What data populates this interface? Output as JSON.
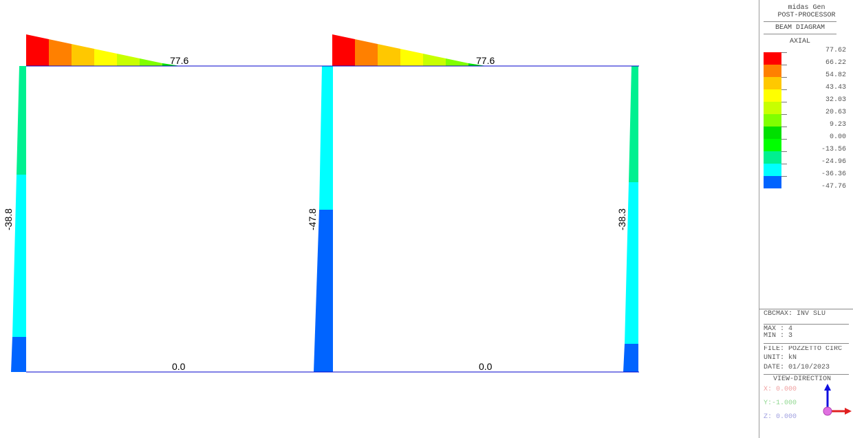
{
  "diagram": {
    "labels": {
      "beam1_top": "77.6",
      "beam2_top": "77.6",
      "beam1_bottom": "0.0",
      "beam2_bottom": "0.0",
      "col_left": "-38.8",
      "col_mid": "-47.8",
      "col_right": "-38.3"
    },
    "colors": {
      "red": "#ff0000",
      "orange": "#ff8000",
      "amber": "#ffc800",
      "yellow": "#ffff00",
      "yellowgreen": "#c8ff00",
      "lightgreen": "#80ff00",
      "green": "#00e000",
      "seagreen": "#00f090",
      "cyan": "#00ffff",
      "blue": "#0064ff",
      "member_line": "#0000cc"
    }
  },
  "panel": {
    "program": "midas Gen",
    "module": "POST-PROCESSOR",
    "diagram_type": "BEAM DIAGRAM",
    "component": "AXIAL",
    "legend": [
      {
        "value": "77.62",
        "color": "#ff0000"
      },
      {
        "value": "66.22",
        "color": "#ff8000"
      },
      {
        "value": "54.82",
        "color": "#ffc800"
      },
      {
        "value": "43.43",
        "color": "#ffff00"
      },
      {
        "value": "32.03",
        "color": "#c8ff00"
      },
      {
        "value": "20.63",
        "color": "#80ff00"
      },
      {
        "value": "9.23",
        "color": "#00e000"
      },
      {
        "value": "0.00",
        "color": "#00ff00"
      },
      {
        "value": "-13.56",
        "color": "#00f090"
      },
      {
        "value": "-24.96",
        "color": "#00ffff"
      },
      {
        "value": "-36.36",
        "color": "#0064ff"
      },
      {
        "value": "-47.76",
        "color": null
      }
    ],
    "load_case": "CBCMAX: INV SLU",
    "max": "MAX : 4",
    "min": "MIN : 3",
    "file": "FILE: POZZETTO CIRC",
    "unit": "UNIT: kN",
    "date": "DATE: 01/10/2023",
    "view_direction": "VIEW-DIRECTION",
    "view_x": "X: 0.000",
    "view_y": "Y:-1.000",
    "view_z": "Z: 0.000",
    "axis_colors": {
      "x": "#e02020",
      "y": "#40c040",
      "z": "#1010e0",
      "origin": "#e070e0"
    }
  }
}
